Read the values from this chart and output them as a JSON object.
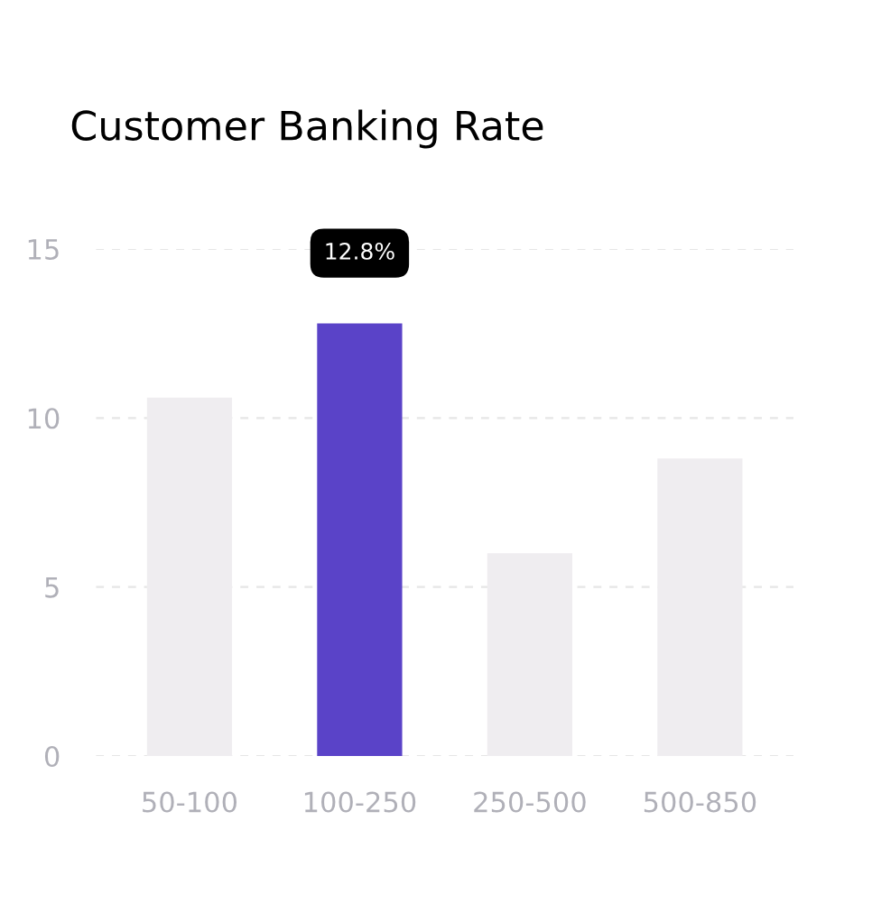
{
  "chart_data": {
    "type": "bar",
    "title": "Customer Banking Rate",
    "categories": [
      "50-100",
      "100-250",
      "250-500",
      "500-850"
    ],
    "values": [
      10.6,
      12.8,
      6.0,
      8.8
    ],
    "colors": [
      "#efedf0",
      "#5a43c8",
      "#efedf0",
      "#efedf0"
    ],
    "value_labels": [
      null,
      "12.8%",
      null,
      null
    ],
    "ylim": [
      0,
      15
    ],
    "yticks": [
      0,
      5,
      10,
      15
    ],
    "grid": "y"
  }
}
